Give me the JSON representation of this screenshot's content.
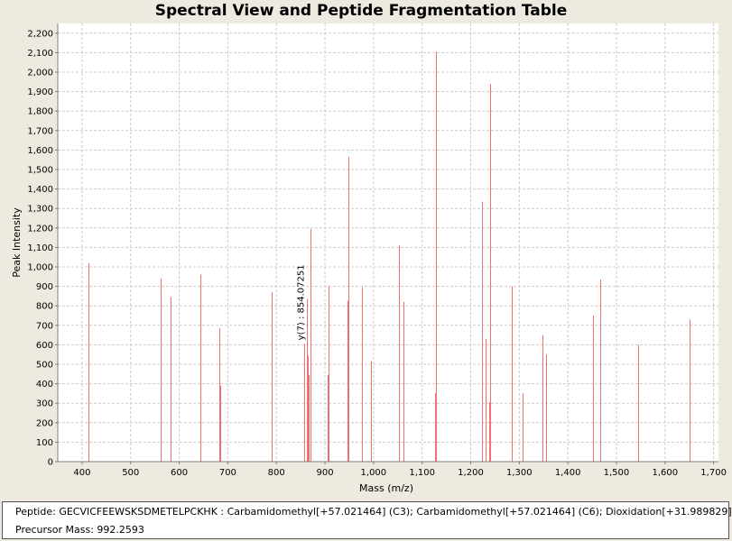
{
  "chart_data": {
    "type": "bar",
    "title": "Spectral View and Peptide Fragmentation Table",
    "xlabel": "Mass (m/z)",
    "ylabel": "Peak Intensity",
    "xlim": [
      350,
      1710
    ],
    "ylim": [
      0,
      2250
    ],
    "xticks": [
      400,
      500,
      600,
      700,
      800,
      900,
      1000,
      1100,
      1200,
      1300,
      1400,
      1500,
      1600,
      1700
    ],
    "yticks": [
      0,
      100,
      200,
      300,
      400,
      500,
      600,
      700,
      800,
      900,
      1000,
      1100,
      1200,
      1300,
      1400,
      1500,
      1600,
      1700,
      1800,
      1900,
      2000,
      2100,
      2200
    ],
    "xtick_labels": [
      "400",
      "500",
      "600",
      "700",
      "800",
      "900",
      "1,000",
      "1,100",
      "1,200",
      "1,300",
      "1,400",
      "1,500",
      "1,600",
      "1,700"
    ],
    "ytick_labels": [
      "0",
      "100",
      "200",
      "300",
      "400",
      "500",
      "600",
      "700",
      "800",
      "900",
      "1,000",
      "1,100",
      "1,200",
      "1,300",
      "1,400",
      "1,500",
      "1,600",
      "1,700",
      "1,800",
      "1,900",
      "2,000",
      "2,100",
      "2,200"
    ],
    "grid": true,
    "series_color": "#f07070",
    "peaks": [
      {
        "mz": 413,
        "intensity": 1020
      },
      {
        "mz": 562,
        "intensity": 940
      },
      {
        "mz": 582,
        "intensity": 845
      },
      {
        "mz": 643,
        "intensity": 960
      },
      {
        "mz": 683,
        "intensity": 685
      },
      {
        "mz": 685,
        "intensity": 390
      },
      {
        "mz": 790,
        "intensity": 870
      },
      {
        "mz": 858,
        "intensity": 605
      },
      {
        "mz": 862,
        "intensity": 835
      },
      {
        "mz": 864,
        "intensity": 545
      },
      {
        "mz": 866,
        "intensity": 445
      },
      {
        "mz": 870,
        "intensity": 1195
      },
      {
        "mz": 905,
        "intensity": 445
      },
      {
        "mz": 908,
        "intensity": 900
      },
      {
        "mz": 947,
        "intensity": 825
      },
      {
        "mz": 949,
        "intensity": 1565
      },
      {
        "mz": 976,
        "intensity": 895
      },
      {
        "mz": 995,
        "intensity": 515
      },
      {
        "mz": 1052,
        "intensity": 1110
      },
      {
        "mz": 1062,
        "intensity": 820
      },
      {
        "mz": 1126,
        "intensity": 350
      },
      {
        "mz": 1128,
        "intensity": 2105
      },
      {
        "mz": 1223,
        "intensity": 1335
      },
      {
        "mz": 1230,
        "intensity": 630
      },
      {
        "mz": 1238,
        "intensity": 305
      },
      {
        "mz": 1240,
        "intensity": 1940
      },
      {
        "mz": 1285,
        "intensity": 900
      },
      {
        "mz": 1306,
        "intensity": 350
      },
      {
        "mz": 1347,
        "intensity": 650
      },
      {
        "mz": 1356,
        "intensity": 550
      },
      {
        "mz": 1452,
        "intensity": 750
      },
      {
        "mz": 1466,
        "intensity": 935
      },
      {
        "mz": 1544,
        "intensity": 600
      },
      {
        "mz": 1651,
        "intensity": 730
      }
    ],
    "annotations": [
      {
        "text": "y(7) : 854.07251",
        "mz": 858,
        "intensity": 605
      }
    ]
  },
  "info": {
    "peptide_line": "Peptide: GECVICFEEWSKSDMETELPCKHK : Carbamidomethyl[+57.021464] (C3); Carbamidomethyl[+57.021464] (C6); Dioxidation[+31.989829]",
    "precursor_line": "Precursor Mass: 992.2593"
  }
}
